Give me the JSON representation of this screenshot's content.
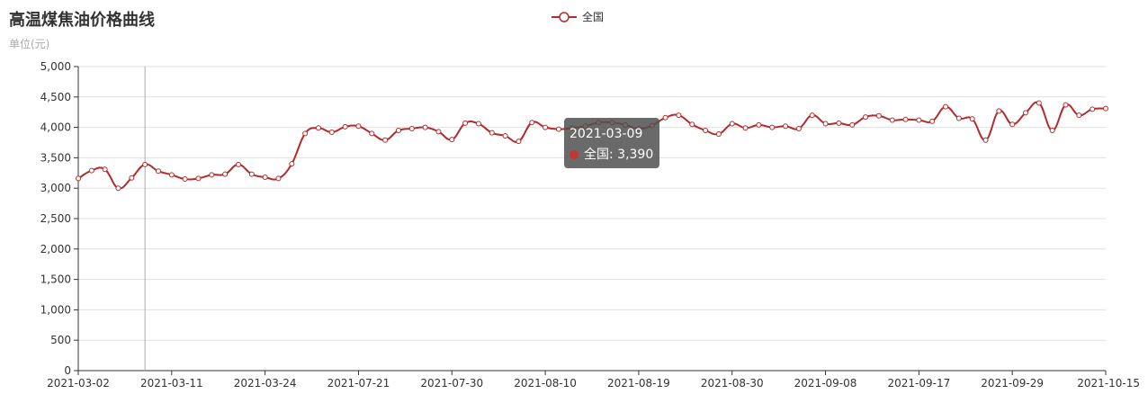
{
  "chart_data": {
    "type": "line",
    "title": "高温煤焦油价格曲线",
    "subtitle": "单位(元)",
    "legend_position": "top-center",
    "grid": true,
    "smooth": true,
    "ylim": [
      0,
      5000
    ],
    "y_ticks": [
      0,
      500,
      1000,
      1500,
      2000,
      2500,
      3000,
      3500,
      4000,
      4500,
      5000
    ],
    "x_tick_labels": [
      "2021-03-02",
      "2021-03-11",
      "2021-03-24",
      "2021-07-21",
      "2021-07-30",
      "2021-08-10",
      "2021-08-19",
      "2021-08-30",
      "2021-09-08",
      "2021-09-17",
      "2021-09-29",
      "2021-10-15"
    ],
    "x_tick_indices": [
      0,
      7,
      14,
      21,
      28,
      35,
      42,
      49,
      56,
      63,
      70,
      77
    ],
    "series": [
      {
        "name": "全国",
        "color": "#b22c2c",
        "values": [
          3160,
          3290,
          3310,
          3000,
          3170,
          3390,
          3280,
          3220,
          3150,
          3160,
          3220,
          3230,
          3390,
          3230,
          3180,
          3160,
          3400,
          3900,
          3990,
          3920,
          4010,
          4020,
          3900,
          3790,
          3950,
          3980,
          4000,
          3930,
          3800,
          4070,
          4060,
          3910,
          3860,
          3770,
          4080,
          4000,
          3970,
          3990,
          4020,
          4080,
          4080,
          4040,
          3980,
          4030,
          4160,
          4200,
          4050,
          3950,
          3890,
          4060,
          3990,
          4040,
          4000,
          4020,
          3980,
          4200,
          4060,
          4070,
          4040,
          4170,
          4190,
          4120,
          4130,
          4120,
          4100,
          4340,
          4150,
          4140,
          3790,
          4270,
          4050,
          4240,
          4400,
          3950,
          4370,
          4200,
          4300,
          4310
        ]
      }
    ]
  },
  "tooltip": {
    "date": "2021-03-09",
    "series_label": "全国: 3,390",
    "point_index": 5
  }
}
